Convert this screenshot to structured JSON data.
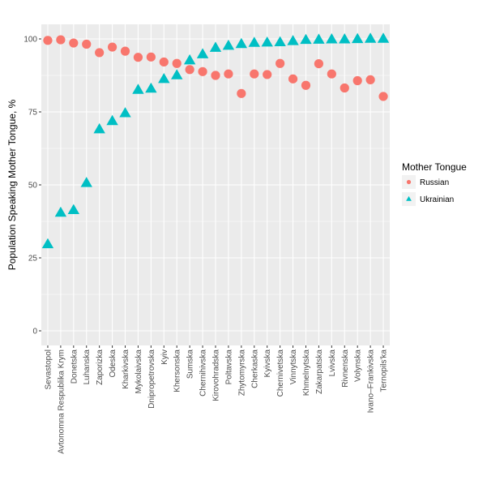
{
  "chart_data": {
    "type": "scatter",
    "ylabel": "Population Speaking Mother Tongue, %",
    "ylim": [
      -5,
      105
    ],
    "yticks": [
      0,
      25,
      50,
      75,
      100
    ],
    "ytick_labels": [
      "0",
      "25",
      "50",
      "75",
      "100"
    ],
    "grid": true,
    "legend": {
      "title": "Mother Tongue",
      "position": "right"
    },
    "categories": [
      "Sevastopol",
      "Avtonomna Respublika Krym",
      "Donetska",
      "Luhanska",
      "Zaporizka",
      "Odeska",
      "Kharkivska",
      "Mykolaivska",
      "Dnipropetrovska",
      "Kyiv",
      "Khersonska",
      "Sumska",
      "Chernihivska",
      "Kirovohradska",
      "Poltavska",
      "Zhytomyrska",
      "Cherkaska",
      "Kyivska",
      "Chernivetska",
      "Vinnytska",
      "Khmelnytska",
      "Zakarpatska",
      "Lvivska",
      "Rivnenska",
      "Volynska",
      "Ivano–Frankivska",
      "Ternopils'ka"
    ],
    "series": [
      {
        "name": "Russian",
        "color": "#F8766D",
        "shape": "circle",
        "values": [
          99.5,
          99.7,
          98.6,
          98.2,
          95.3,
          97.2,
          95.8,
          93.7,
          93.8,
          92.1,
          91.6,
          89.5,
          88.8,
          87.5,
          88.0,
          81.3,
          88.0,
          87.8,
          91.6,
          86.3,
          84.1,
          91.5,
          88.0,
          83.2,
          85.7,
          86.0,
          80.3
        ]
      },
      {
        "name": "Ukrainian",
        "color": "#00BFC4",
        "shape": "triangle",
        "values": [
          29.6,
          40.4,
          41.3,
          50.6,
          69.0,
          71.8,
          74.5,
          82.5,
          82.9,
          86.2,
          87.5,
          92.6,
          94.7,
          96.9,
          97.6,
          98.2,
          98.6,
          98.7,
          98.8,
          99.2,
          99.6,
          99.7,
          99.8,
          99.8,
          99.9,
          100.0,
          100.0
        ]
      }
    ]
  }
}
